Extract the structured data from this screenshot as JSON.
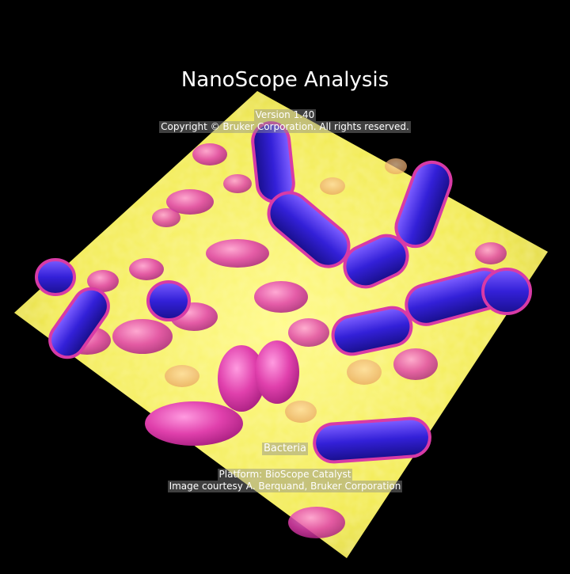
{
  "splash": {
    "title": "NanoScope Analysis",
    "version": "Version 1.40",
    "copyright": "Copyright © Bruker Corporation. All rights reserved.",
    "caption": "Bacteria",
    "platform": "Platform: BioScope Catalyst",
    "courtesy": "Image courtesy A. Berquand, Bruker Corporation"
  },
  "colors": {
    "background": "#000000",
    "surface": "#f2ec52",
    "cell_low": "#e03aa6",
    "cell_high": "#2b1fd0",
    "text": "#ffffff"
  }
}
